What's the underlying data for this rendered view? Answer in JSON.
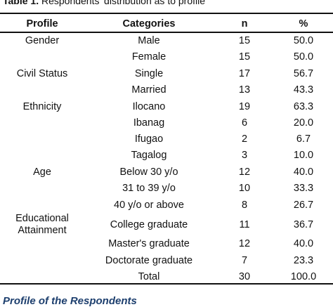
{
  "caption": {
    "label": "Table 1.",
    "text": "Respondents' distribution as to profile"
  },
  "table": {
    "headers": {
      "profile": "Profile",
      "categories": "Categories",
      "n": "n",
      "percent": "%"
    },
    "profiles": {
      "gender": "Gender",
      "civil_status": "Civil Status",
      "ethnicity": "Ethnicity",
      "age": "Age",
      "education_line1": "Educational",
      "education_line2": "Attainment"
    },
    "rows": [
      {
        "category": "Male",
        "n": "15",
        "percent": "50.0"
      },
      {
        "category": "Female",
        "n": "15",
        "percent": "50.0"
      },
      {
        "category": "Single",
        "n": "17",
        "percent": "56.7"
      },
      {
        "category": "Married",
        "n": "13",
        "percent": "43.3"
      },
      {
        "category": "Ilocano",
        "n": "19",
        "percent": "63.3"
      },
      {
        "category": "Ibanag",
        "n": "6",
        "percent": "20.0"
      },
      {
        "category": "Ifugao",
        "n": "2",
        "percent": "6.7"
      },
      {
        "category": "Tagalog",
        "n": "3",
        "percent": "10.0"
      },
      {
        "category": "Below 30 y/o",
        "n": "12",
        "percent": "40.0"
      },
      {
        "category": "31 to 39 y/o",
        "n": "10",
        "percent": "33.3"
      },
      {
        "category": "40 y/o or above",
        "n": "8",
        "percent": "26.7"
      },
      {
        "category": "College graduate",
        "n": "11",
        "percent": "36.7"
      },
      {
        "category": "Master's graduate",
        "n": "12",
        "percent": "40.0"
      },
      {
        "category": "Doctorate graduate",
        "n": "7",
        "percent": "23.3"
      },
      {
        "category": "Total",
        "n": "30",
        "percent": "100.0"
      }
    ]
  },
  "footer": {
    "heading": "Profile of the Respondents"
  }
}
